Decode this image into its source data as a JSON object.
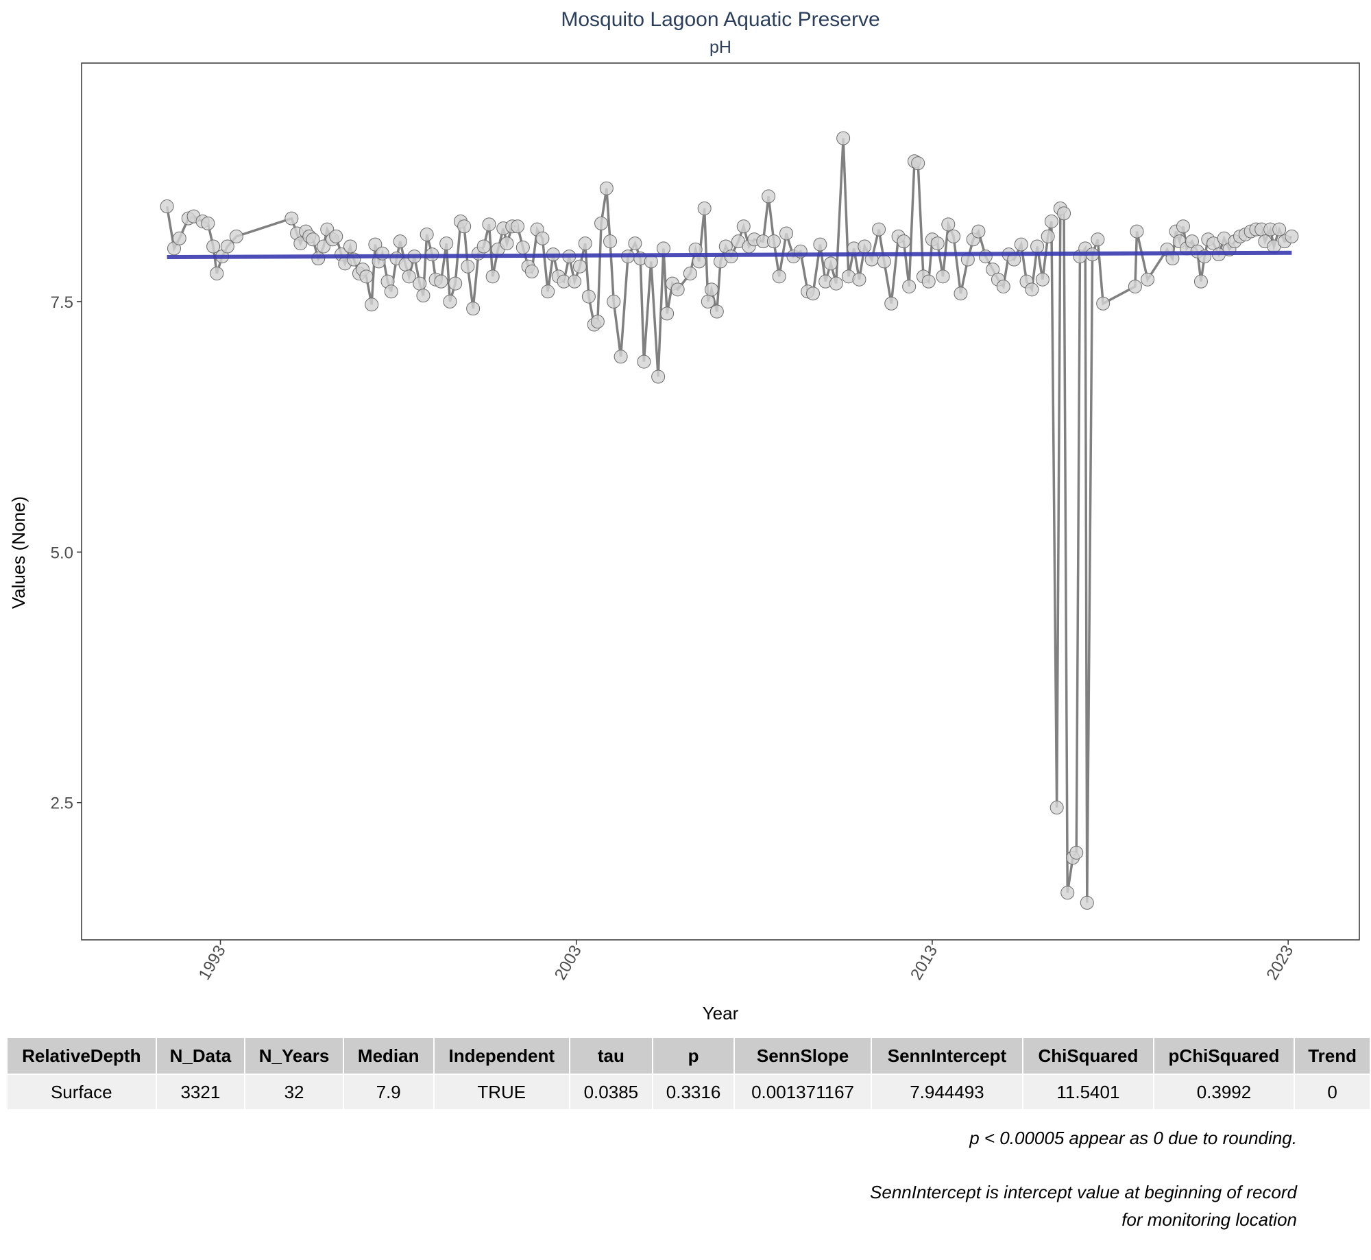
{
  "chart_data": {
    "type": "line",
    "title": "Mosquito Lagoon Aquatic Preserve",
    "subtitle": "pH",
    "x_label": "Year",
    "y_label": "Values (None)",
    "xlim": [
      1989.1,
      2025.0
    ],
    "ylim": [
      1.13,
      9.88
    ],
    "xticks": [
      1993,
      2003,
      2013,
      2023
    ],
    "yticks": [
      2.5,
      {
        "value": 5,
        "label": "5.0"
      },
      7.5
    ],
    "grid": false,
    "color": "#808080",
    "marker_fill": "#d3d3d3",
    "x": [
      1991.5,
      1991.7,
      1991.85,
      1992.1,
      1992.25,
      1992.5,
      1992.65,
      1992.8,
      1992.9,
      1993.05,
      1993.2,
      1993.45,
      1995.0,
      1995.15,
      1995.25,
      1995.4,
      1995.5,
      1995.6,
      1995.75,
      1995.9,
      1996.0,
      1996.15,
      1996.25,
      1996.4,
      1996.5,
      1996.65,
      1996.75,
      1996.9,
      1997.0,
      1997.1,
      1997.25,
      1997.35,
      1997.45,
      1997.55,
      1997.7,
      1997.8,
      1997.95,
      1998.05,
      1998.2,
      1998.3,
      1998.45,
      1998.6,
      1998.7,
      1998.8,
      1998.95,
      1999.05,
      1999.2,
      1999.35,
      1999.45,
      1999.6,
      1999.75,
      1999.85,
      1999.95,
      2000.1,
      2000.25,
      2000.4,
      2000.55,
      2000.65,
      2000.8,
      2000.95,
      2001.05,
      2001.2,
      2001.35,
      2001.5,
      2001.65,
      2001.75,
      2001.9,
      2002.05,
      2002.2,
      2002.35,
      2002.5,
      2002.65,
      2002.8,
      2002.95,
      2003.1,
      2003.25,
      2003.35,
      2003.5,
      2003.6,
      2003.7,
      2003.85,
      2003.95,
      2004.05,
      2004.25,
      2004.45,
      2004.65,
      2004.8,
      2004.9,
      2005.1,
      2005.3,
      2005.45,
      2005.55,
      2005.7,
      2005.85,
      2006.2,
      2006.35,
      2006.45,
      2006.6,
      2006.7,
      2006.8,
      2006.95,
      2007.05,
      2007.2,
      2007.35,
      2007.55,
      2007.7,
      2007.85,
      2008.0,
      2008.25,
      2008.4,
      2008.55,
      2008.7,
      2008.9,
      2009.1,
      2009.3,
      2009.5,
      2009.65,
      2009.85,
      2010.0,
      2010.15,
      2010.3,
      2010.5,
      2010.65,
      2010.8,
      2010.95,
      2011.1,
      2011.3,
      2011.5,
      2011.65,
      2011.85,
      2012.05,
      2012.2,
      2012.35,
      2012.5,
      2012.6,
      2012.75,
      2012.9,
      2013.0,
      2013.15,
      2013.3,
      2013.45,
      2013.6,
      2013.8,
      2014.0,
      2014.15,
      2014.3,
      2014.5,
      2014.7,
      2014.85,
      2015.0,
      2015.15,
      2015.3,
      2015.5,
      2015.65,
      2015.8,
      2015.95,
      2016.1,
      2016.25,
      2016.35,
      2016.5,
      2016.6,
      2016.7,
      2016.8,
      2016.95,
      2017.05,
      2017.15,
      2017.3,
      2017.35,
      2017.5,
      2017.65,
      2017.8,
      2018.7,
      2018.75,
      2019.05,
      2019.6,
      2019.75,
      2019.85,
      2019.95,
      2020.05,
      2020.15,
      2020.3,
      2020.45,
      2020.55,
      2020.65,
      2020.75,
      2020.9,
      2021.05,
      2021.2,
      2021.35,
      2021.5,
      2021.65,
      2021.8,
      2021.95,
      2022.1,
      2022.25,
      2022.35,
      2022.5,
      2022.6,
      2022.75,
      2022.9,
      2023.1
    ],
    "values": [
      8.45,
      8.03,
      8.13,
      8.33,
      8.35,
      8.3,
      8.28,
      8.05,
      7.78,
      7.95,
      8.05,
      8.15,
      8.33,
      8.18,
      8.08,
      8.2,
      8.15,
      8.12,
      7.93,
      8.05,
      8.22,
      8.12,
      8.15,
      7.97,
      7.88,
      8.05,
      7.92,
      7.78,
      7.82,
      7.75,
      7.47,
      8.07,
      7.9,
      7.98,
      7.7,
      7.6,
      7.93,
      8.1,
      7.87,
      7.75,
      7.95,
      7.68,
      7.56,
      8.17,
      7.97,
      7.72,
      7.7,
      8.08,
      7.5,
      7.68,
      8.3,
      8.25,
      7.85,
      7.43,
      7.98,
      8.05,
      8.27,
      7.75,
      8.02,
      8.23,
      8.08,
      8.25,
      8.25,
      8.04,
      7.85,
      7.8,
      8.22,
      8.13,
      7.6,
      7.97,
      7.75,
      7.7,
      7.95,
      7.7,
      7.85,
      8.08,
      7.55,
      7.27,
      7.3,
      8.28,
      8.63,
      8.1,
      7.5,
      6.95,
      7.95,
      8.08,
      7.93,
      6.9,
      7.9,
      6.75,
      8.03,
      7.38,
      7.68,
      7.62,
      7.78,
      8.02,
      7.9,
      8.43,
      7.5,
      7.62,
      7.4,
      7.9,
      8.05,
      7.95,
      8.1,
      8.25,
      8.05,
      8.12,
      8.1,
      8.55,
      8.1,
      7.75,
      8.18,
      7.95,
      8.0,
      7.6,
      7.58,
      8.07,
      7.7,
      7.88,
      7.68,
      9.13,
      7.75,
      8.03,
      7.72,
      8.05,
      7.92,
      8.22,
      7.9,
      7.48,
      8.15,
      8.1,
      7.65,
      8.9,
      8.88,
      7.75,
      7.7,
      8.12,
      8.08,
      7.75,
      8.27,
      8.15,
      7.58,
      7.92,
      8.12,
      8.2,
      7.95,
      7.82,
      7.72,
      7.65,
      7.97,
      7.92,
      8.07,
      7.7,
      7.62,
      8.05,
      7.72,
      8.15,
      8.3,
      2.45,
      8.43,
      8.38,
      1.6,
      1.95,
      2.0,
      7.95,
      8.03,
      1.5,
      7.97,
      8.12,
      7.48,
      7.65,
      8.2,
      7.72,
      8.02,
      7.93,
      8.2,
      8.1,
      8.25,
      8.03,
      8.1,
      8.0,
      7.7,
      7.95,
      8.12,
      8.08,
      7.97,
      8.13,
      8.02,
      8.1,
      8.15,
      8.17,
      8.2,
      8.22,
      8.22,
      8.1,
      8.22,
      8.05,
      8.22,
      8.1,
      8.15
    ],
    "trend": {
      "x": [
        1991.5,
        2023.1
      ],
      "values": [
        7.944,
        7.987
      ],
      "color": "#3a3ab0"
    }
  },
  "table": {
    "header": [
      "RelativeDepth",
      "N_Data",
      "N_Years",
      "Median",
      "Independent",
      "tau",
      "p",
      "SennSlope",
      "SennIntercept",
      "ChiSquared",
      "pChiSquared",
      "Trend"
    ],
    "rows": [
      [
        "Surface",
        "3321",
        "32",
        "7.9",
        "TRUE",
        "0.0385",
        "0.3316",
        "0.001371167",
        "7.944493",
        "11.5401",
        "0.3992",
        "0"
      ]
    ]
  },
  "notes": [
    "p < 0.00005 appear as 0 due to rounding.",
    "SennIntercept is intercept value at beginning of record for monitoring location"
  ]
}
